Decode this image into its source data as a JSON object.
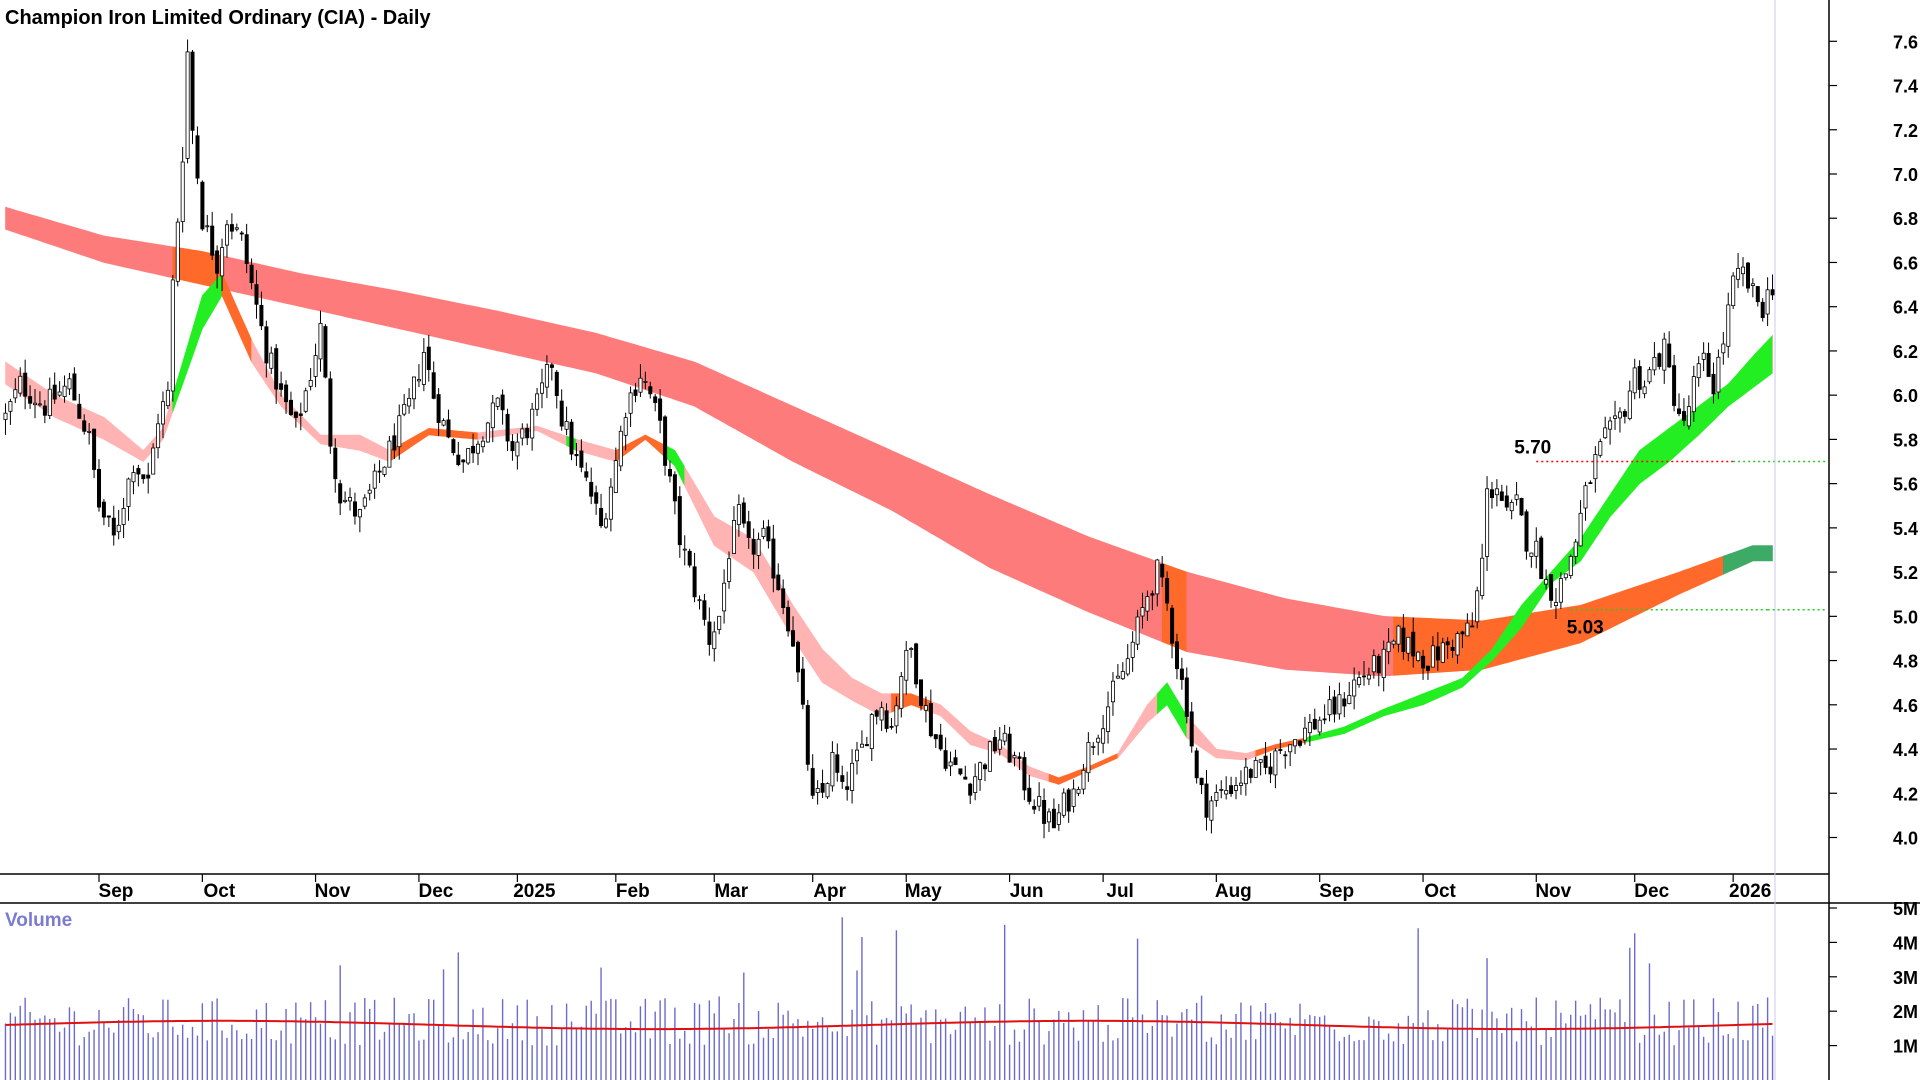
{
  "chart_data": {
    "type": "candlestick",
    "title": "Champion Iron Limited Ordinary (CIA) - Daily",
    "volume_label": "Volume",
    "y_axis": {
      "ylim": [
        3.85,
        7.75
      ],
      "ticks": [
        "4.0",
        "4.2",
        "4.4",
        "4.6",
        "4.8",
        "5.0",
        "5.2",
        "5.4",
        "5.6",
        "5.8",
        "6.0",
        "6.2",
        "6.4",
        "6.6",
        "6.8",
        "7.0",
        "7.2",
        "7.4",
        "7.6"
      ]
    },
    "volume_axis": {
      "ylim": [
        0,
        5.8
      ],
      "ticks": [
        "1M",
        "2M",
        "3M",
        "4M",
        "5M"
      ]
    },
    "x_axis": {
      "labels": [
        {
          "text": "Sep",
          "pos": 19
        },
        {
          "text": "Oct",
          "pos": 40
        },
        {
          "text": "Nov",
          "pos": 63
        },
        {
          "text": "Dec",
          "pos": 84
        },
        {
          "text": "2025",
          "pos": 104
        },
        {
          "text": "Feb",
          "pos": 124
        },
        {
          "text": "Mar",
          "pos": 144
        },
        {
          "text": "Apr",
          "pos": 164
        },
        {
          "text": "May",
          "pos": 183
        },
        {
          "text": "Jun",
          "pos": 204
        },
        {
          "text": "Jul",
          "pos": 223
        },
        {
          "text": "Aug",
          "pos": 246
        },
        {
          "text": "Sep",
          "pos": 267
        },
        {
          "text": "Oct",
          "pos": 288
        },
        {
          "text": "Nov",
          "pos": 311
        },
        {
          "text": "Dec",
          "pos": 331
        },
        {
          "text": "2026",
          "pos": 351
        }
      ],
      "n_days": 360
    },
    "annotations": [
      {
        "text": "5.70",
        "value": 5.7,
        "from": 311
      },
      {
        "text": "5.03",
        "value": 5.03,
        "from": 318
      }
    ],
    "price_anchors": [
      [
        0,
        5.9
      ],
      [
        3,
        6.05
      ],
      [
        8,
        5.95
      ],
      [
        13,
        6.05
      ],
      [
        17,
        5.8
      ],
      [
        19,
        5.5
      ],
      [
        22,
        5.35
      ],
      [
        26,
        5.7
      ],
      [
        29,
        5.6
      ],
      [
        31,
        5.9
      ],
      [
        33,
        6.0
      ],
      [
        34,
        6.5
      ],
      [
        36,
        7.1
      ],
      [
        37,
        7.55
      ],
      [
        38,
        7.2
      ],
      [
        40,
        6.8
      ],
      [
        43,
        6.6
      ],
      [
        45,
        6.8
      ],
      [
        48,
        6.7
      ],
      [
        50,
        6.5
      ],
      [
        53,
        6.2
      ],
      [
        56,
        6.0
      ],
      [
        59,
        5.85
      ],
      [
        62,
        6.1
      ],
      [
        64,
        6.3
      ],
      [
        66,
        5.8
      ],
      [
        68,
        5.55
      ],
      [
        72,
        5.45
      ],
      [
        75,
        5.6
      ],
      [
        78,
        5.75
      ],
      [
        82,
        5.95
      ],
      [
        85,
        6.2
      ],
      [
        87,
        6.0
      ],
      [
        90,
        5.8
      ],
      [
        93,
        5.7
      ],
      [
        97,
        5.85
      ],
      [
        100,
        5.95
      ],
      [
        103,
        5.75
      ],
      [
        106,
        5.85
      ],
      [
        108,
        5.95
      ],
      [
        111,
        6.15
      ],
      [
        113,
        5.9
      ],
      [
        116,
        5.7
      ],
      [
        119,
        5.55
      ],
      [
        121,
        5.4
      ],
      [
        124,
        5.7
      ],
      [
        126,
        5.95
      ],
      [
        129,
        6.1
      ],
      [
        131,
        6.0
      ],
      [
        133,
        5.85
      ],
      [
        135,
        5.6
      ],
      [
        137,
        5.35
      ],
      [
        139,
        5.2
      ],
      [
        141,
        5.05
      ],
      [
        143,
        4.9
      ],
      [
        145,
        5.0
      ],
      [
        147,
        5.3
      ],
      [
        149,
        5.45
      ],
      [
        151,
        5.3
      ],
      [
        154,
        5.35
      ],
      [
        157,
        5.15
      ],
      [
        160,
        4.9
      ],
      [
        162,
        4.55
      ],
      [
        164,
        4.15
      ],
      [
        166,
        4.2
      ],
      [
        168,
        4.35
      ],
      [
        170,
        4.2
      ],
      [
        172,
        4.3
      ],
      [
        174,
        4.4
      ],
      [
        176,
        4.55
      ],
      [
        178,
        4.6
      ],
      [
        180,
        4.5
      ],
      [
        182,
        4.75
      ],
      [
        184,
        4.85
      ],
      [
        186,
        4.65
      ],
      [
        188,
        4.5
      ],
      [
        190,
        4.4
      ],
      [
        193,
        4.3
      ],
      [
        196,
        4.25
      ],
      [
        199,
        4.35
      ],
      [
        202,
        4.45
      ],
      [
        205,
        4.35
      ],
      [
        208,
        4.2
      ],
      [
        211,
        4.1
      ],
      [
        213,
        4.05
      ],
      [
        215,
        4.15
      ],
      [
        217,
        4.2
      ],
      [
        219,
        4.35
      ],
      [
        222,
        4.5
      ],
      [
        225,
        4.65
      ],
      [
        228,
        4.8
      ],
      [
        230,
        4.95
      ],
      [
        232,
        5.1
      ],
      [
        234,
        5.2
      ],
      [
        236,
        5.05
      ],
      [
        238,
        4.8
      ],
      [
        240,
        4.6
      ],
      [
        242,
        4.25
      ],
      [
        244,
        4.15
      ],
      [
        247,
        4.2
      ],
      [
        250,
        4.25
      ],
      [
        253,
        4.3
      ],
      [
        256,
        4.3
      ],
      [
        259,
        4.4
      ],
      [
        262,
        4.45
      ],
      [
        265,
        4.5
      ],
      [
        268,
        4.55
      ],
      [
        271,
        4.6
      ],
      [
        274,
        4.7
      ],
      [
        277,
        4.75
      ],
      [
        280,
        4.8
      ],
      [
        283,
        4.9
      ],
      [
        286,
        4.85
      ],
      [
        289,
        4.8
      ],
      [
        292,
        4.85
      ],
      [
        295,
        4.9
      ],
      [
        298,
        4.95
      ],
      [
        300,
        5.25
      ],
      [
        301,
        5.55
      ],
      [
        303,
        5.6
      ],
      [
        305,
        5.45
      ],
      [
        307,
        5.5
      ],
      [
        309,
        5.35
      ],
      [
        311,
        5.3
      ],
      [
        313,
        5.15
      ],
      [
        315,
        5.1
      ],
      [
        317,
        5.2
      ],
      [
        319,
        5.35
      ],
      [
        321,
        5.55
      ],
      [
        323,
        5.7
      ],
      [
        325,
        5.8
      ],
      [
        327,
        5.85
      ],
      [
        329,
        5.95
      ],
      [
        331,
        6.1
      ],
      [
        333,
        6.05
      ],
      [
        335,
        6.15
      ],
      [
        337,
        6.2
      ],
      [
        339,
        6.0
      ],
      [
        341,
        5.85
      ],
      [
        343,
        6.05
      ],
      [
        345,
        6.15
      ],
      [
        347,
        6.05
      ],
      [
        349,
        6.25
      ],
      [
        351,
        6.5
      ],
      [
        353,
        6.55
      ],
      [
        355,
        6.45
      ],
      [
        357,
        6.4
      ],
      [
        359,
        6.5
      ]
    ],
    "long_band_anchors": [
      [
        0,
        6.85,
        6.75
      ],
      [
        20,
        6.72,
        6.6
      ],
      [
        40,
        6.65,
        6.5
      ],
      [
        60,
        6.55,
        6.4
      ],
      [
        80,
        6.47,
        6.3
      ],
      [
        100,
        6.38,
        6.2
      ],
      [
        120,
        6.28,
        6.1
      ],
      [
        140,
        6.15,
        5.95
      ],
      [
        160,
        5.95,
        5.7
      ],
      [
        180,
        5.75,
        5.48
      ],
      [
        200,
        5.55,
        5.22
      ],
      [
        220,
        5.36,
        5.02
      ],
      [
        240,
        5.2,
        4.84
      ],
      [
        260,
        5.08,
        4.76
      ],
      [
        280,
        5.0,
        4.73
      ],
      [
        300,
        4.98,
        4.76
      ],
      [
        320,
        5.05,
        4.88
      ],
      [
        340,
        5.2,
        5.1
      ],
      [
        355,
        5.32,
        5.25
      ]
    ],
    "long_band_orange_ranges": [
      [
        34,
        44
      ],
      [
        235,
        240
      ],
      [
        282,
        305
      ],
      [
        305,
        355
      ]
    ],
    "short_band_anchors": [
      [
        0,
        6.15,
        6.05
      ],
      [
        10,
        6.0,
        5.9
      ],
      [
        20,
        5.9,
        5.8
      ],
      [
        28,
        5.75,
        5.7
      ],
      [
        32,
        5.85,
        5.8
      ],
      [
        36,
        6.15,
        6.05
      ],
      [
        40,
        6.45,
        6.3
      ],
      [
        44,
        6.55,
        6.45
      ],
      [
        50,
        6.25,
        6.15
      ],
      [
        56,
        6.0,
        5.95
      ],
      [
        64,
        5.82,
        5.78
      ],
      [
        72,
        5.82,
        5.75
      ],
      [
        78,
        5.75,
        5.7
      ],
      [
        86,
        5.85,
        5.82
      ],
      [
        96,
        5.83,
        5.8
      ],
      [
        108,
        5.86,
        5.84
      ],
      [
        116,
        5.8,
        5.75
      ],
      [
        124,
        5.75,
        5.7
      ],
      [
        130,
        5.82,
        5.8
      ],
      [
        136,
        5.75,
        5.68
      ],
      [
        144,
        5.45,
        5.32
      ],
      [
        152,
        5.35,
        5.2
      ],
      [
        160,
        5.05,
        4.9
      ],
      [
        166,
        4.85,
        4.7
      ],
      [
        172,
        4.72,
        4.62
      ],
      [
        178,
        4.65,
        4.55
      ],
      [
        184,
        4.65,
        4.6
      ],
      [
        190,
        4.6,
        4.55
      ],
      [
        196,
        4.48,
        4.42
      ],
      [
        202,
        4.42,
        4.38
      ],
      [
        208,
        4.32,
        4.28
      ],
      [
        214,
        4.27,
        4.24
      ],
      [
        220,
        4.32,
        4.3
      ],
      [
        226,
        4.38,
        4.36
      ],
      [
        232,
        4.6,
        4.52
      ],
      [
        236,
        4.7,
        4.6
      ],
      [
        240,
        4.55,
        4.45
      ],
      [
        246,
        4.4,
        4.36
      ],
      [
        252,
        4.38,
        4.35
      ],
      [
        258,
        4.42,
        4.4
      ],
      [
        264,
        4.45,
        4.43
      ],
      [
        272,
        4.5,
        4.47
      ],
      [
        280,
        4.58,
        4.55
      ],
      [
        288,
        4.65,
        4.6
      ],
      [
        296,
        4.72,
        4.68
      ],
      [
        302,
        4.85,
        4.8
      ],
      [
        308,
        5.05,
        4.95
      ],
      [
        314,
        5.2,
        5.15
      ],
      [
        320,
        5.35,
        5.25
      ],
      [
        326,
        5.55,
        5.45
      ],
      [
        332,
        5.75,
        5.6
      ],
      [
        338,
        5.85,
        5.7
      ],
      [
        344,
        5.95,
        5.82
      ],
      [
        350,
        6.05,
        5.95
      ],
      [
        356,
        6.2,
        6.05
      ],
      [
        359,
        6.27,
        6.1
      ]
    ],
    "short_band_green_ranges": [
      [
        34,
        44
      ],
      [
        114,
        116
      ],
      [
        134,
        138
      ],
      [
        234,
        240
      ],
      [
        264,
        300
      ],
      [
        300,
        359
      ]
    ],
    "short_band_orange_ranges": [
      [
        44,
        50
      ],
      [
        78,
        96
      ],
      [
        124,
        134
      ],
      [
        180,
        188
      ],
      [
        212,
        226
      ],
      [
        254,
        264
      ]
    ],
    "volume_avg_millions": 1.6
  }
}
